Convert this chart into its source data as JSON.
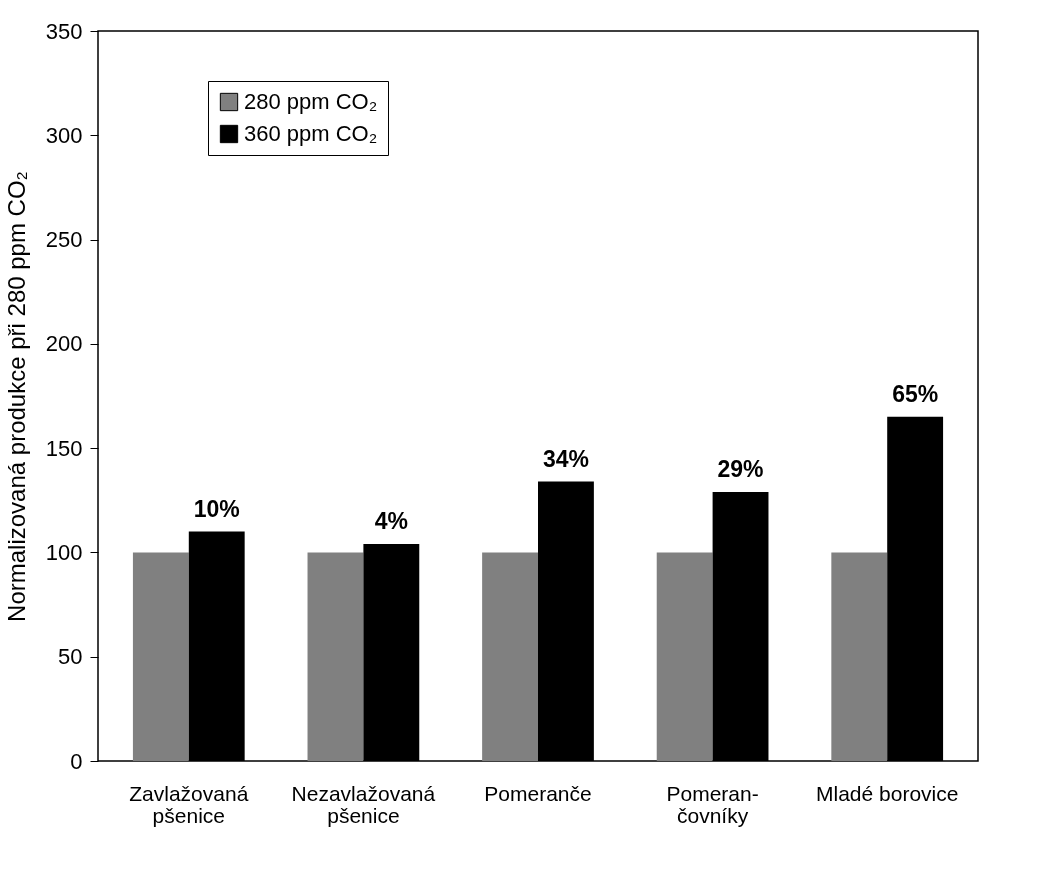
{
  "chart_data": {
    "type": "bar",
    "ylabel": "Normalizovaná produkce při 280 ppm CO₂",
    "categories": [
      "Zavlažovaná\npšenice",
      "Nezavlažovaná\npšenice",
      "Pomeranče",
      "Pomeran-\nčovníky",
      "Mladé borovice"
    ],
    "series": [
      {
        "name": "280 ppm CO₂",
        "color": "#808080",
        "values": [
          100,
          100,
          100,
          100,
          100
        ]
      },
      {
        "name": "360 ppm CO₂",
        "color": "#000000",
        "values": [
          110,
          104,
          134,
          129,
          165
        ]
      }
    ],
    "annotations": [
      {
        "text": "10%",
        "x": "Zavlažovaná\npšenice",
        "y": 110
      },
      {
        "text": "4%",
        "x": "Nezavlažovaná\npšenice",
        "y": 104
      },
      {
        "text": "34%",
        "x": "Pomeranče",
        "y": 134
      },
      {
        "text": "29%",
        "x": "Pomeran-\nčovníky",
        "y": 129
      },
      {
        "text": "65%",
        "x": "Mladé borovice",
        "y": 165
      }
    ],
    "ylim": [
      0,
      350
    ],
    "yticks": [
      0,
      50,
      100,
      150,
      200,
      250,
      300,
      350
    ],
    "grid": false,
    "legend": "top left"
  }
}
